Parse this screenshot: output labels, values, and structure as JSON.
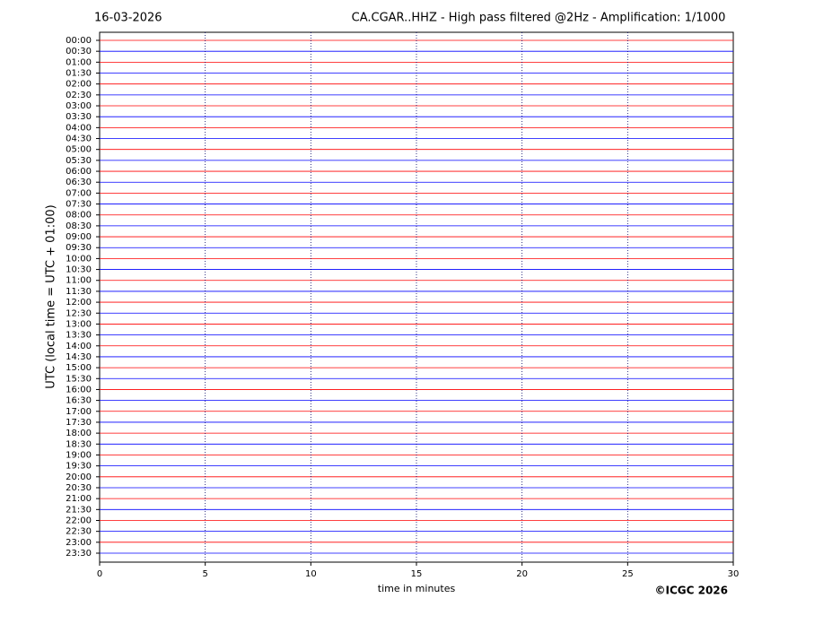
{
  "chart_data": {
    "type": "helicorder",
    "date": "16-03-2026",
    "title": "CA.CGAR..HHZ - High pass filtered @2Hz - Amplification: 1/1000",
    "ylabel": "UTC (local time = UTC + 01:00)",
    "xlabel": "time in minutes",
    "copyright": "©ICGC 2026",
    "categories": [
      "00:00",
      "00:30",
      "01:00",
      "01:30",
      "02:00",
      "02:30",
      "03:00",
      "03:30",
      "04:00",
      "04:30",
      "05:00",
      "05:30",
      "06:00",
      "06:30",
      "07:00",
      "07:30",
      "08:00",
      "08:30",
      "09:00",
      "09:30",
      "10:00",
      "10:30",
      "11:00",
      "11:30",
      "12:00",
      "12:30",
      "13:00",
      "13:30",
      "14:00",
      "14:30",
      "15:00",
      "15:30",
      "16:00",
      "16:30",
      "17:00",
      "17:30",
      "18:00",
      "18:30",
      "19:00",
      "19:30",
      "20:00",
      "20:30",
      "21:00",
      "21:30",
      "22:00",
      "22:30",
      "23:00",
      "23:30"
    ],
    "trace_colors": [
      "#ff0000",
      "#0000ff"
    ],
    "xlim": [
      0,
      30
    ],
    "xticks": [
      0,
      5,
      10,
      15,
      20,
      25,
      30
    ],
    "grid": true
  }
}
